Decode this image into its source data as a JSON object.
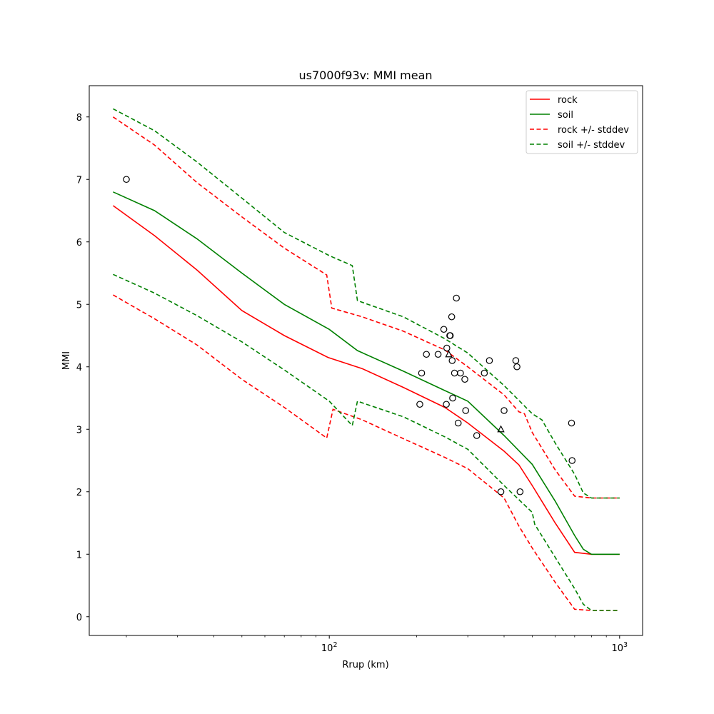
{
  "chart_data": {
    "type": "line",
    "title": "us7000f93v: MMI mean",
    "xlabel": "Rrup (km)",
    "ylabel": "MMI",
    "xscale": "log",
    "xlim": [
      14.9,
      1200
    ],
    "ylim": [
      -0.3,
      8.5
    ],
    "xticks": [
      {
        "value": 100,
        "label": "10^2"
      },
      {
        "value": 1000,
        "label": "10^3"
      }
    ],
    "yticks": [
      0,
      1,
      2,
      3,
      4,
      5,
      6,
      7,
      8
    ],
    "grid": false,
    "legend_position": "top-right",
    "legend": [
      {
        "label": "rock",
        "color": "#ff0000",
        "style": "solid"
      },
      {
        "label": "soil",
        "color": "#008000",
        "style": "solid"
      },
      {
        "label": "rock +/- stddev",
        "color": "#ff0000",
        "style": "dashed"
      },
      {
        "label": "soil +/- stddev",
        "color": "#008000",
        "style": "dashed"
      }
    ],
    "series": [
      {
        "name": "rock",
        "color": "#ff0000",
        "style": "solid",
        "x": [
          18,
          25,
          35,
          50,
          70,
          99,
          130,
          180,
          250,
          300,
          400,
          450,
          500,
          600,
          700,
          800,
          1000
        ],
        "y": [
          6.58,
          6.1,
          5.55,
          4.9,
          4.5,
          4.15,
          3.97,
          3.67,
          3.35,
          3.1,
          2.65,
          2.43,
          2.1,
          1.5,
          1.03,
          1.0,
          1.0
        ]
      },
      {
        "name": "soil",
        "color": "#008000",
        "style": "solid",
        "x": [
          18,
          25,
          35,
          50,
          70,
          100,
          125,
          180,
          250,
          300,
          400,
          500,
          600,
          700,
          750,
          800,
          1000
        ],
        "y": [
          6.8,
          6.5,
          6.05,
          5.5,
          5.0,
          4.6,
          4.26,
          3.93,
          3.62,
          3.45,
          2.9,
          2.44,
          1.85,
          1.3,
          1.08,
          1.0,
          1.0
        ]
      },
      {
        "name": "rock + stddev",
        "color": "#ff0000",
        "style": "dashed",
        "x": [
          18,
          25,
          35,
          50,
          70,
          98,
          102,
          130,
          180,
          250,
          300,
          400,
          450,
          470,
          500,
          600,
          700,
          800,
          1000
        ],
        "y": [
          8.0,
          7.55,
          6.95,
          6.4,
          5.9,
          5.47,
          4.94,
          4.8,
          4.57,
          4.27,
          4.0,
          3.55,
          3.28,
          3.25,
          2.95,
          2.35,
          1.93,
          1.9,
          1.9
        ]
      },
      {
        "name": "rock - stddev",
        "color": "#ff0000",
        "style": "dashed",
        "x": [
          18,
          25,
          35,
          50,
          70,
          98,
          103,
          130,
          180,
          250,
          300,
          400,
          450,
          500,
          600,
          700,
          800,
          1000
        ],
        "y": [
          5.15,
          4.77,
          4.35,
          3.8,
          3.35,
          2.86,
          3.32,
          3.15,
          2.85,
          2.55,
          2.37,
          1.9,
          1.45,
          1.1,
          0.55,
          0.12,
          0.1,
          0.1
        ]
      },
      {
        "name": "soil + stddev",
        "color": "#008000",
        "style": "dashed",
        "x": [
          18,
          25,
          35,
          50,
          70,
          100,
          120,
          125,
          180,
          250,
          300,
          400,
          500,
          540,
          600,
          700,
          750,
          800,
          1000
        ],
        "y": [
          8.13,
          7.78,
          7.28,
          6.7,
          6.15,
          5.78,
          5.62,
          5.06,
          4.8,
          4.45,
          4.22,
          3.7,
          3.25,
          3.15,
          2.78,
          2.28,
          1.98,
          1.9,
          1.9
        ]
      },
      {
        "name": "soil - stddev",
        "color": "#008000",
        "style": "dashed",
        "x": [
          18,
          25,
          35,
          50,
          70,
          100,
          120,
          125,
          180,
          250,
          300,
          400,
          500,
          510,
          600,
          700,
          750,
          800,
          1000
        ],
        "y": [
          5.48,
          5.18,
          4.82,
          4.4,
          3.95,
          3.45,
          3.06,
          3.45,
          3.2,
          2.88,
          2.68,
          2.1,
          1.67,
          1.48,
          0.95,
          0.45,
          0.2,
          0.1,
          0.1
        ]
      }
    ],
    "observations": [
      {
        "marker": "circle",
        "points": [
          [
            20,
            7.0
          ],
          [
            205,
            3.4
          ],
          [
            208,
            3.9
          ],
          [
            216,
            4.2
          ],
          [
            237,
            4.2
          ],
          [
            248,
            4.6
          ],
          [
            253,
            3.4
          ],
          [
            254,
            4.3
          ],
          [
            260,
            4.5
          ],
          [
            261,
            4.5
          ],
          [
            264,
            4.8
          ],
          [
            265,
            4.1
          ],
          [
            266,
            3.5
          ],
          [
            270,
            3.9
          ],
          [
            274,
            5.1
          ],
          [
            278,
            3.1
          ],
          [
            283,
            3.9
          ],
          [
            293,
            3.8
          ],
          [
            295,
            3.3
          ],
          [
            322,
            2.9
          ],
          [
            342,
            3.9
          ],
          [
            356,
            4.1
          ],
          [
            390,
            2.0
          ],
          [
            400,
            3.3
          ],
          [
            439,
            4.1
          ],
          [
            443,
            4.0
          ],
          [
            454,
            2.0
          ],
          [
            683,
            3.1
          ],
          [
            686,
            2.5
          ]
        ]
      },
      {
        "marker": "triangle",
        "points": [
          [
            258,
            4.2
          ],
          [
            390,
            3.0
          ]
        ]
      }
    ]
  }
}
